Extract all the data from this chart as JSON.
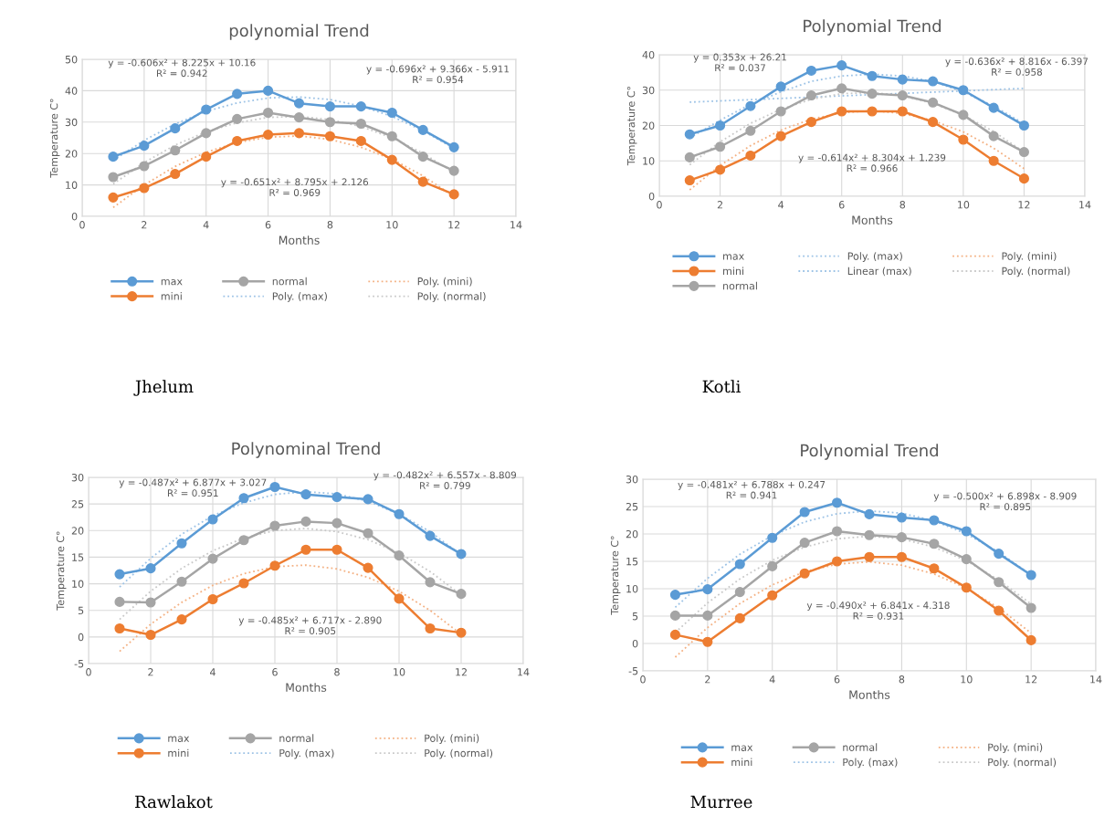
{
  "chart_data": [
    {
      "type": "line",
      "title": "polynomial Trend",
      "xlabel": "Months",
      "ylabel": "Temperature C°",
      "xlim": [
        0,
        14
      ],
      "xticks": [
        0,
        2,
        4,
        6,
        8,
        10,
        12,
        14
      ],
      "ylim": [
        0,
        50
      ],
      "yticks": [
        0,
        10,
        20,
        30,
        40,
        50
      ],
      "grid": true,
      "legend": "bottom",
      "x": [
        1,
        2,
        3,
        4,
        5,
        6,
        7,
        8,
        9,
        10,
        11,
        12
      ],
      "series": [
        {
          "name": "max",
          "color": "#5b9bd5",
          "marker": "circle",
          "values": [
            19,
            22.5,
            28,
            34,
            39,
            40,
            36,
            35,
            35,
            33,
            27.5,
            22
          ]
        },
        {
          "name": "mini",
          "color": "#ed7d31",
          "marker": "circle",
          "values": [
            6,
            9,
            13.5,
            19,
            24,
            26,
            26.5,
            25.5,
            24,
            18,
            11,
            7
          ]
        },
        {
          "name": "normal",
          "color": "#a5a5a5",
          "marker": "circle",
          "values": [
            12.5,
            16,
            21,
            26.5,
            31,
            33,
            31.5,
            30,
            29.5,
            25.5,
            19,
            14.5
          ]
        },
        {
          "name": "Poly. (max)",
          "color": "#9dc3e6",
          "marker": "none",
          "line_style": "dotted",
          "values": [
            17.8,
            24.2,
            29.4,
            33.4,
            36.1,
            37.7,
            38.0,
            37.2,
            35.1,
            31.8,
            27.3,
            21.6
          ]
        },
        {
          "name": "Poly. (mini)",
          "color": "#f4b183",
          "marker": "none",
          "line_style": "dotted",
          "values": [
            2.8,
            10.0,
            15.9,
            20.4,
            23.5,
            25.2,
            25.6,
            24.5,
            22.0,
            18.2,
            12.9,
            6.3
          ]
        },
        {
          "name": "Poly. (normal)",
          "color": "#c9c9c9",
          "marker": "none",
          "line_style": "dotted",
          "values": [
            10.3,
            17.1,
            22.7,
            26.9,
            29.8,
            31.5,
            31.8,
            30.8,
            28.6,
            25.0,
            20.1,
            13.9
          ]
        }
      ],
      "annotations": [
        "y = -0.606x² + 8.225x + 10.16\nR² = 0.942",
        "y = -0.696x² + 9.366x - 5.911\nR² = 0.954",
        "y = -0.651x² + 8.795x + 2.126\nR² = 0.969",
        "Jhelum"
      ]
    },
    {
      "type": "line",
      "title": "Polynomial Trend",
      "xlabel": "Months",
      "ylabel": "Temperature C°",
      "xlim": [
        0,
        14
      ],
      "xticks": [
        0,
        2,
        4,
        6,
        8,
        10,
        12,
        14
      ],
      "ylim": [
        0,
        40
      ],
      "yticks": [
        0,
        10,
        20,
        30,
        40
      ],
      "grid": true,
      "legend": "bottom",
      "x": [
        1,
        2,
        3,
        4,
        5,
        6,
        7,
        8,
        9,
        10,
        11,
        12
      ],
      "series": [
        {
          "name": "max",
          "color": "#5b9bd5",
          "marker": "circle",
          "values": [
            17.5,
            20,
            25.5,
            31,
            35.5,
            37,
            34,
            33,
            32.5,
            30,
            25,
            20
          ]
        },
        {
          "name": "mini",
          "color": "#ed7d31",
          "marker": "circle",
          "values": [
            4.5,
            7.5,
            11.5,
            17,
            21,
            24,
            24,
            24,
            21,
            16,
            10,
            5
          ]
        },
        {
          "name": "normal",
          "color": "#a5a5a5",
          "marker": "circle",
          "values": [
            11,
            14,
            18.5,
            24,
            28.5,
            30.5,
            29,
            28.5,
            26.5,
            23,
            17,
            12.5
          ]
        },
        {
          "name": "Poly. (max)",
          "color": "#9dc3e6",
          "marker": "none",
          "line_style": "dotted",
          "values": [
            16.5,
            21.5,
            26,
            29.5,
            32.5,
            34,
            34.5,
            34,
            32.5,
            29.5,
            25.5,
            20.5
          ]
        },
        {
          "name": "Linear (max)",
          "color": "#9dc3e6",
          "marker": "none",
          "line_style": "dotted",
          "x": [
            1,
            12
          ],
          "values": [
            26.6,
            30.5
          ]
        },
        {
          "name": "Poly. (mini)",
          "color": "#f4b183",
          "marker": "none",
          "line_style": "dotted",
          "values": [
            1.8,
            8.7,
            14.3,
            18.7,
            21.8,
            23.6,
            24.2,
            23.4,
            21.4,
            18.2,
            13.6,
            7.8
          ]
        },
        {
          "name": "Poly. (normal)",
          "color": "#c9c9c9",
          "marker": "none",
          "line_style": "dotted",
          "values": [
            8.9,
            15.4,
            20.6,
            24.6,
            27.4,
            29.0,
            29.3,
            28.4,
            26.3,
            22.9,
            18.3,
            12.5
          ]
        }
      ],
      "annotations": [
        "y = 0.353x + 26.21\nR² = 0.037",
        "y = -0.636x² + 8.816x - 6.397\nR² = 0.958",
        "y = -0.614x² + 8.304x + 1.239\nR² = 0.966",
        "Kotli"
      ]
    },
    {
      "type": "line",
      "title": "Polynominal Trend",
      "xlabel": "Months",
      "ylabel": "Temperature C°",
      "xlim": [
        0,
        14
      ],
      "xticks": [
        0,
        2,
        4,
        6,
        8,
        10,
        12,
        14
      ],
      "ylim": [
        -5,
        30
      ],
      "yticks": [
        -5,
        0,
        5,
        10,
        15,
        20,
        25,
        30
      ],
      "grid": true,
      "legend": "bottom",
      "x": [
        1,
        2,
        3,
        4,
        5,
        6,
        7,
        8,
        9,
        10,
        11,
        12
      ],
      "series": [
        {
          "name": "max",
          "color": "#5b9bd5",
          "marker": "circle",
          "values": [
            11.8,
            12.9,
            17.6,
            22.1,
            26.1,
            28.2,
            26.8,
            26.3,
            25.9,
            23.1,
            19,
            15.6
          ]
        },
        {
          "name": "mini",
          "color": "#ed7d31",
          "marker": "circle",
          "values": [
            1.6,
            0.4,
            3.3,
            7.1,
            10.1,
            13.4,
            16.4,
            16.4,
            13,
            7.2,
            1.6,
            0.8
          ]
        },
        {
          "name": "normal",
          "color": "#a5a5a5",
          "marker": "circle",
          "values": [
            6.6,
            6.5,
            10.4,
            14.7,
            18.2,
            20.9,
            21.7,
            21.4,
            19.5,
            15.3,
            10.3,
            8.1
          ]
        },
        {
          "name": "Poly. (max)",
          "color": "#9dc3e6",
          "marker": "none",
          "line_style": "dotted",
          "values": [
            9.4,
            14.8,
            19.3,
            22.8,
            25.2,
            26.8,
            27.3,
            26.9,
            25.5,
            23.1,
            19.8,
            15.4
          ]
        },
        {
          "name": "Poly. (mini)",
          "color": "#f4b183",
          "marker": "none",
          "line_style": "dotted",
          "values": [
            -2.7,
            2.4,
            6.5,
            9.7,
            11.9,
            13.2,
            13.5,
            12.8,
            11.2,
            8.6,
            5.0,
            0.5
          ]
        },
        {
          "name": "Poly. (normal)",
          "color": "#c9c9c9",
          "marker": "none",
          "line_style": "dotted",
          "values": [
            3.3,
            8.6,
            12.9,
            16.2,
            18.6,
            20.0,
            20.4,
            19.8,
            18.3,
            15.8,
            12.3,
            7.9
          ]
        }
      ],
      "annotations": [
        "y = -0.487x² + 6.877x + 3.027\nR² = 0.951",
        "y = -0.482x² + 6.557x - 8.809\nR² = 0.799",
        "y = -0.485x² + 6.717x - 2.890\nR² = 0.905",
        "Rawlakot"
      ]
    },
    {
      "type": "line",
      "title": "Polynomial Trend",
      "xlabel": "Months",
      "ylabel": "Temperature C°",
      "xlim": [
        0,
        14
      ],
      "xticks": [
        0,
        2,
        4,
        6,
        8,
        10,
        12,
        14
      ],
      "ylim": [
        -5,
        30
      ],
      "yticks": [
        -5,
        0,
        5,
        10,
        15,
        20,
        25,
        30
      ],
      "grid": true,
      "legend": "bottom",
      "x": [
        1,
        2,
        3,
        4,
        5,
        6,
        7,
        8,
        9,
        10,
        11,
        12
      ],
      "series": [
        {
          "name": "max",
          "color": "#5b9bd5",
          "marker": "circle",
          "values": [
            8.9,
            9.9,
            14.5,
            19.3,
            24,
            25.7,
            23.6,
            23,
            22.5,
            20.5,
            16.4,
            12.5
          ]
        },
        {
          "name": "mini",
          "color": "#ed7d31",
          "marker": "circle",
          "values": [
            1.6,
            0.3,
            4.6,
            8.8,
            12.8,
            15,
            15.8,
            15.8,
            13.7,
            10.2,
            6,
            0.6
          ]
        },
        {
          "name": "normal",
          "color": "#a5a5a5",
          "marker": "circle",
          "values": [
            5.1,
            5.1,
            9.4,
            14.1,
            18.4,
            20.5,
            19.8,
            19.4,
            18.2,
            15.4,
            11.2,
            6.5
          ]
        },
        {
          "name": "Poly. (max)",
          "color": "#9dc3e6",
          "marker": "none",
          "line_style": "dotted",
          "values": [
            6.6,
            11.9,
            16.3,
            19.7,
            22.2,
            23.7,
            24.2,
            23.8,
            22.4,
            20.0,
            16.7,
            12.5
          ]
        },
        {
          "name": "Poly. (mini)",
          "color": "#f4b183",
          "marker": "none",
          "line_style": "dotted",
          "values": [
            -2.5,
            2.9,
            7.3,
            10.7,
            13.1,
            14.5,
            14.9,
            14.3,
            12.7,
            10.1,
            6.5,
            1.9
          ]
        },
        {
          "name": "Poly. (normal)",
          "color": "#c9c9c9",
          "marker": "none",
          "line_style": "dotted",
          "values": [
            2.0,
            7.4,
            11.8,
            15.2,
            17.6,
            19.1,
            19.6,
            19.1,
            17.6,
            15.1,
            11.6,
            7.2
          ]
        }
      ],
      "annotations": [
        "y = -0.481x² + 6.788x + 0.247\nR² = 0.941",
        "y = -0.500x² + 6.898x - 8.909\nR² = 0.895",
        "y = -0.490x² + 6.841x - 4.318\nR² = 0.931",
        "Murree"
      ]
    }
  ]
}
